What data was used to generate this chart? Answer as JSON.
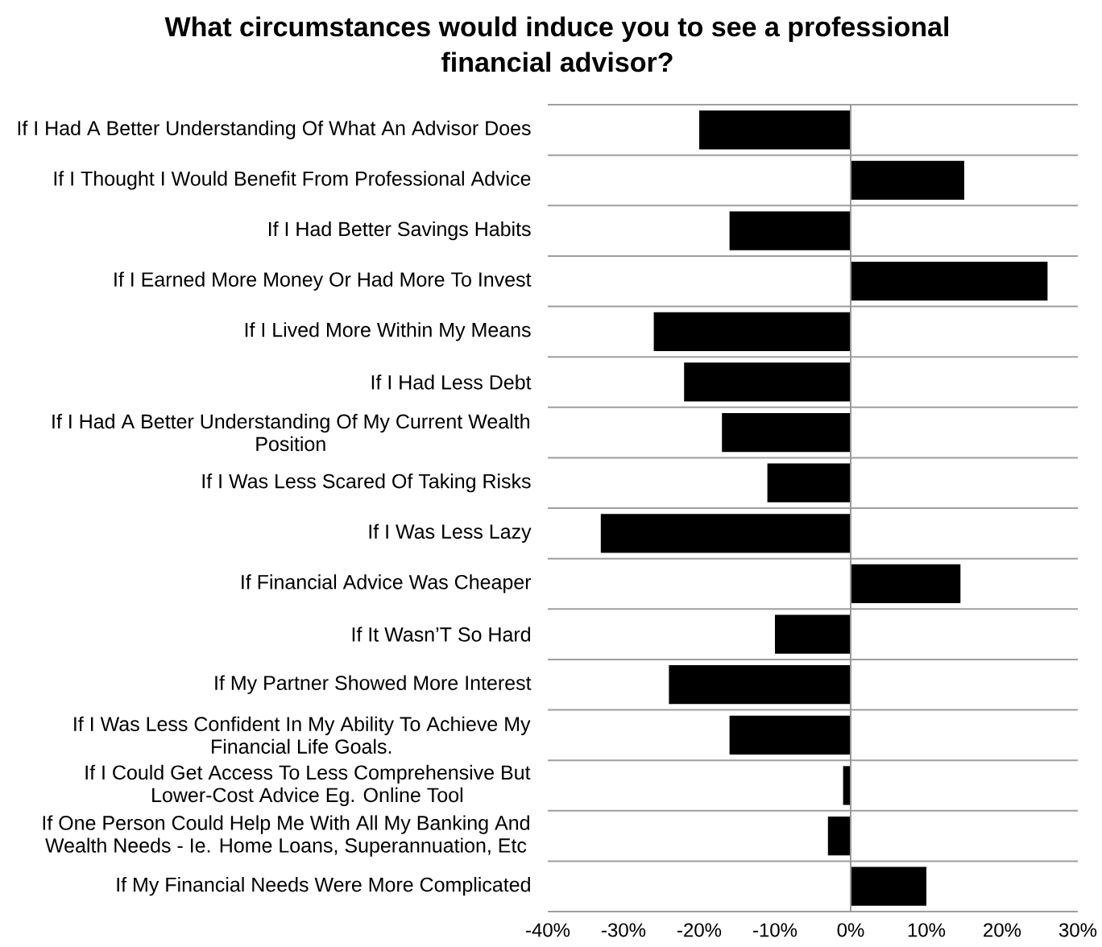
{
  "chart_data": {
    "type": "bar",
    "orientation": "horizontal",
    "title": "What circumstances would induce you to see a professional financial advisor?",
    "categories": [
      "If I Had A Better Understanding Of What An Advisor Does",
      "If I Thought I Would Benefit From Professional Advice",
      "If I Had Better Savings Habits",
      "If I Earned More Money Or Had More To Invest",
      "If I Lived More Within My Means",
      "If I Had Less Debt",
      "If I Had A Better Understanding Of My Current Wealth Position",
      "If I Was Less Scared Of Taking Risks",
      "If I Was Less Lazy",
      "If Financial Advice Was Cheaper",
      "If It Wasn’T So Hard",
      "If My Partner Showed More Interest",
      "If I Was Less Confident In My Ability To Achieve My Financial Life Goals.",
      "If I Could Get Access To Less Comprehensive But Lower-Cost Advice Eg. Online Tool",
      "If One Person Could Help Me With All My Banking And Wealth Needs - Ie. Home Loans, Superannuation, Etc",
      "If My Financial Needs Were More Complicated"
    ],
    "values": [
      -20,
      15,
      -16,
      26,
      -26,
      -22,
      -17,
      -11,
      -33,
      14.5,
      -10,
      -24,
      -16,
      -1,
      -3,
      10
    ],
    "color": "#000000",
    "xlim": [
      -40,
      30
    ],
    "xticks": [
      {
        "value": -40,
        "label": "-40%"
      },
      {
        "value": -30,
        "label": "-30%"
      },
      {
        "value": -20,
        "label": "-20%"
      },
      {
        "value": -10,
        "label": "-10%"
      },
      {
        "value": 0,
        "label": "0%"
      },
      {
        "value": 10,
        "label": "10%"
      },
      {
        "value": 20,
        "label": "20%"
      },
      {
        "value": 30,
        "label": "30%"
      }
    ],
    "grid": "y"
  }
}
